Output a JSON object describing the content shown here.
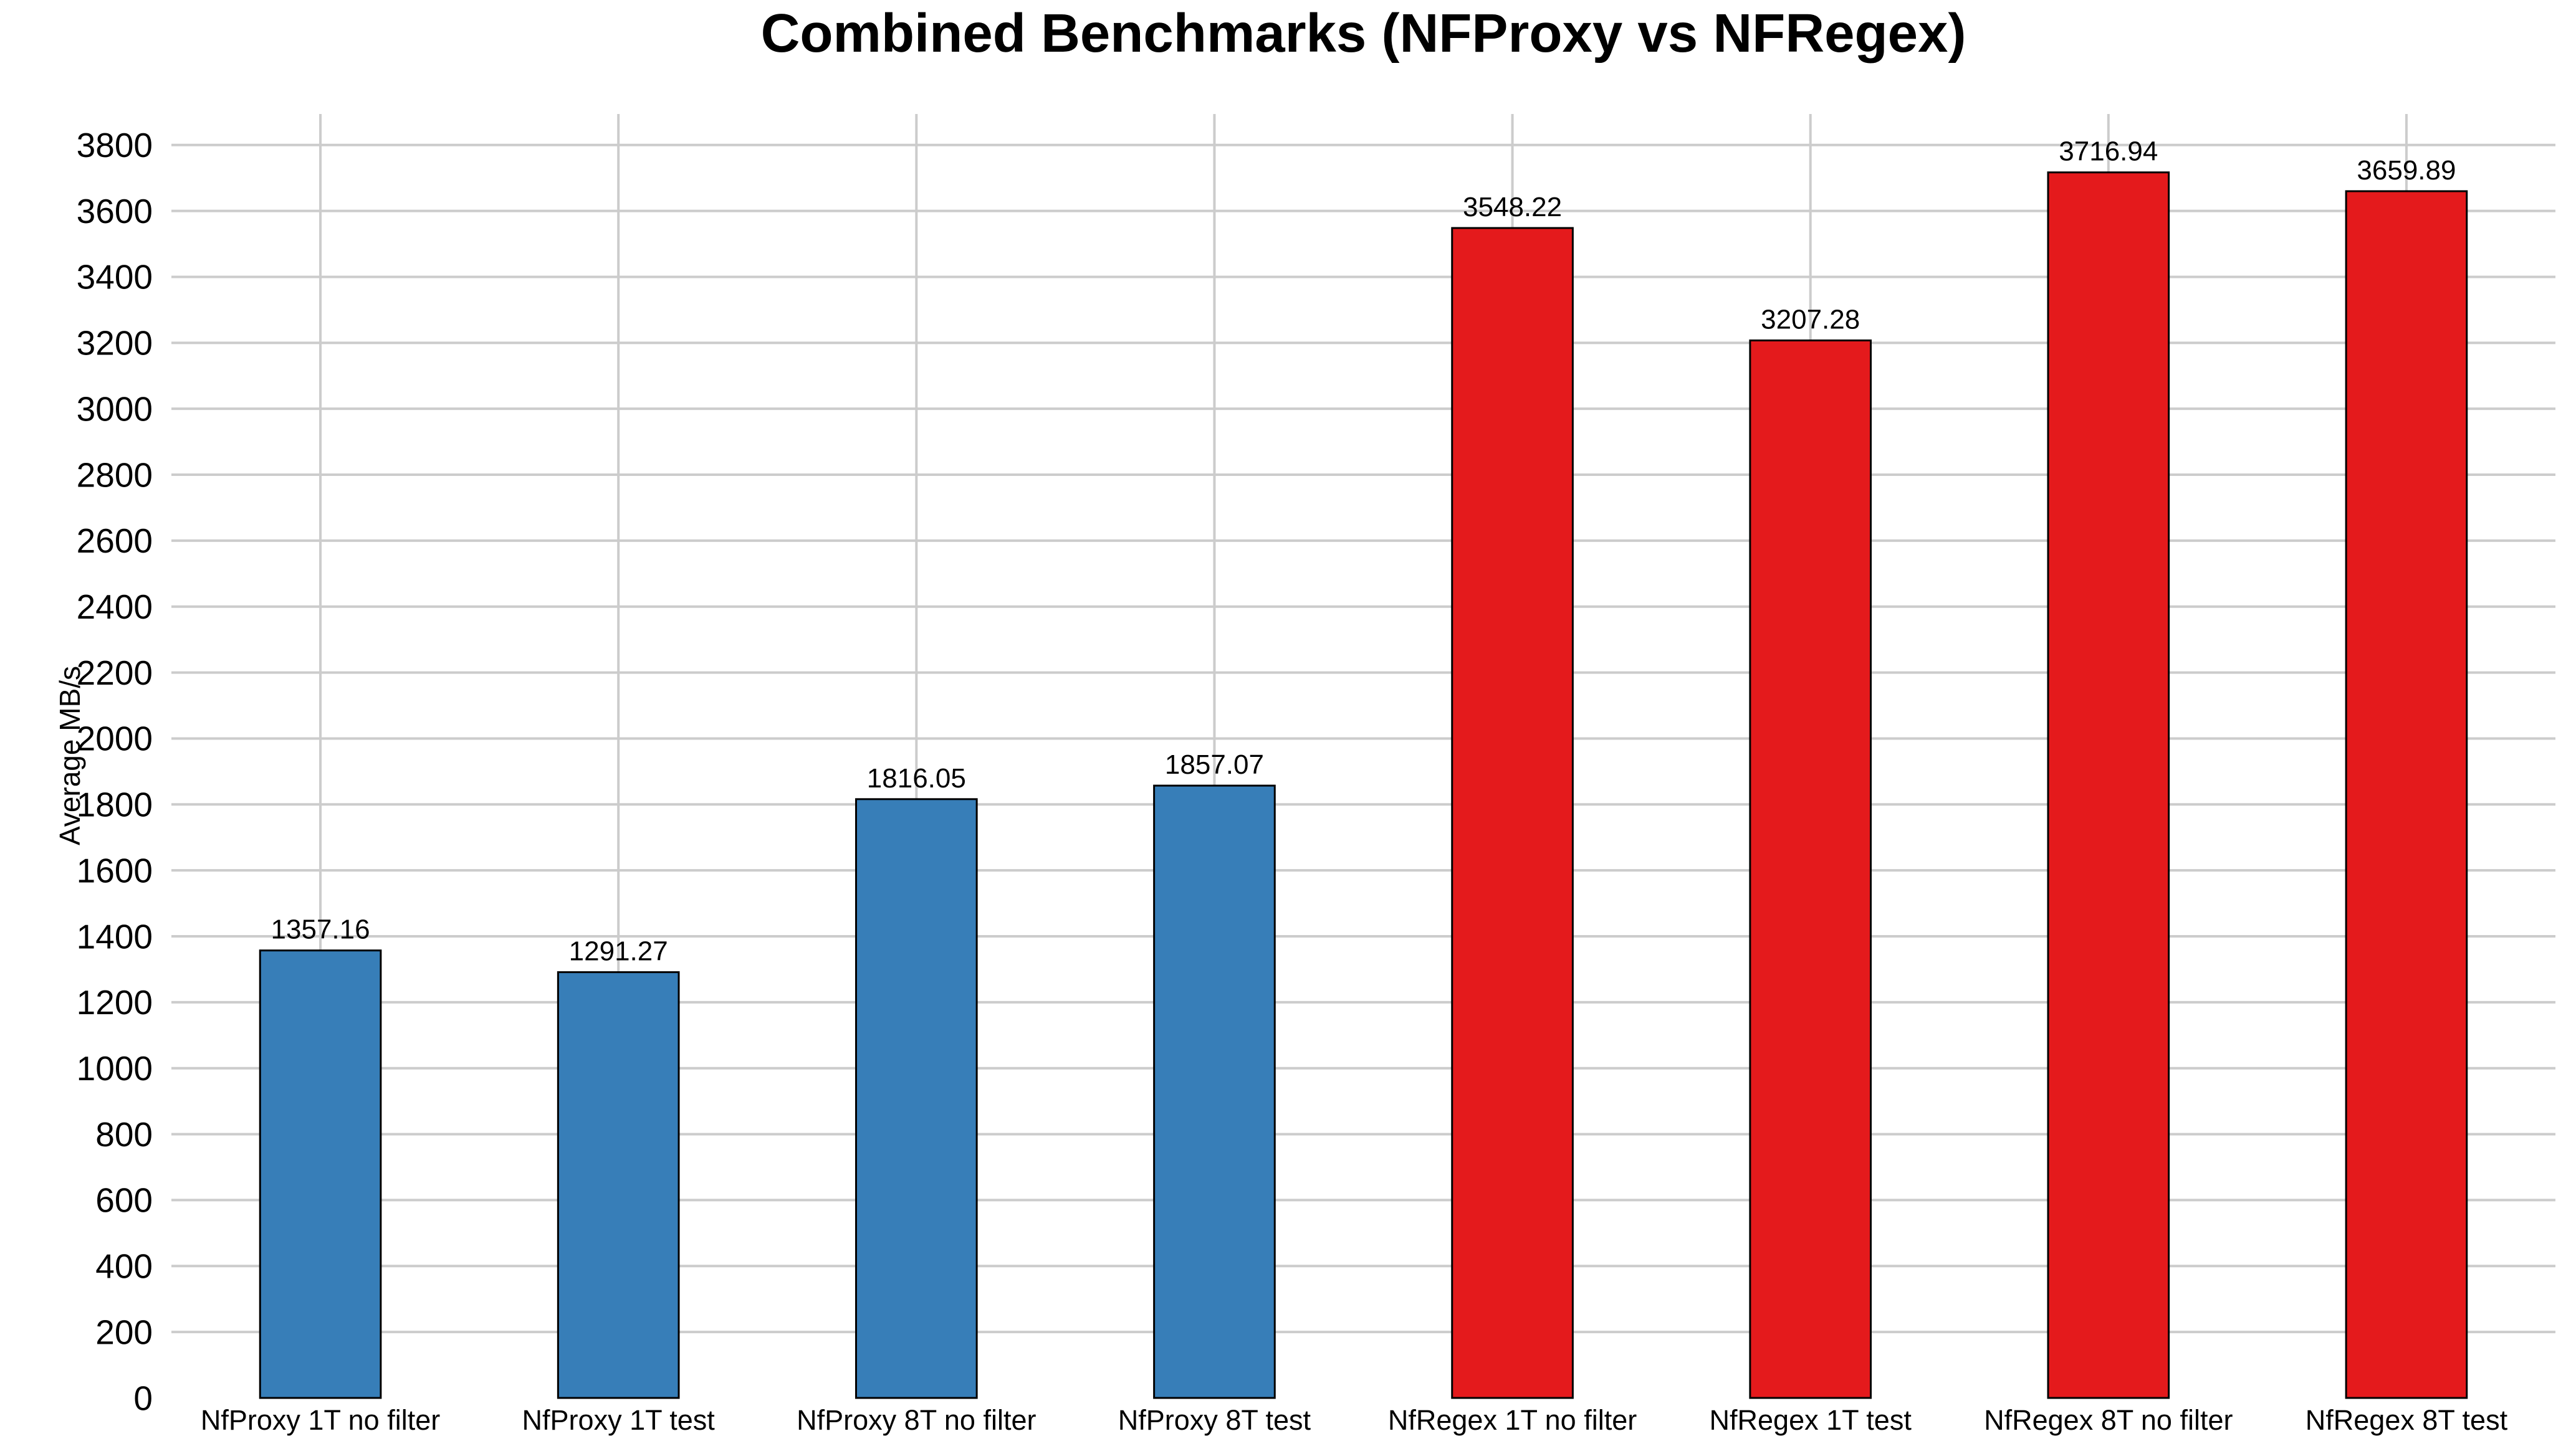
{
  "chart_data": {
    "type": "bar",
    "title": "Combined Benchmarks (NFProxy vs NFRegex)",
    "ylabel": "Average MB/s",
    "xlabel": "",
    "categories": [
      "NfProxy 1T no filter",
      "NfProxy 1T test",
      "NfProxy 8T no filter",
      "NfProxy 8T test",
      "NfRegex 1T no filter",
      "NfRegex 1T test",
      "NfRegex 8T no filter",
      "NfRegex 8T test"
    ],
    "values": [
      1357.16,
      1291.27,
      1816.05,
      1857.07,
      3548.22,
      3207.28,
      3716.94,
      3659.89
    ],
    "value_labels": [
      "1357.16",
      "1291.27",
      "1816.05",
      "1857.07",
      "3548.22",
      "3207.28",
      "3716.94",
      "3659.89"
    ],
    "bar_colors": [
      "#377eb8",
      "#377eb8",
      "#377eb8",
      "#377eb8",
      "#e41a1c",
      "#e41a1c",
      "#e41a1c",
      "#e41a1c"
    ],
    "series_colors": {
      "NfProxy": "#377eb8",
      "NfRegex": "#e41a1c"
    },
    "bar_edge_color": "#000000",
    "grid_color": "#cccccc",
    "background_color": "#ffffff",
    "yticks": [
      0,
      200,
      400,
      600,
      800,
      1000,
      1200,
      1400,
      1600,
      1800,
      2000,
      2200,
      2400,
      2600,
      2800,
      3000,
      3200,
      3400,
      3600,
      3800
    ],
    "ylim": [
      0,
      3894
    ],
    "grid": true,
    "legend": null
  }
}
